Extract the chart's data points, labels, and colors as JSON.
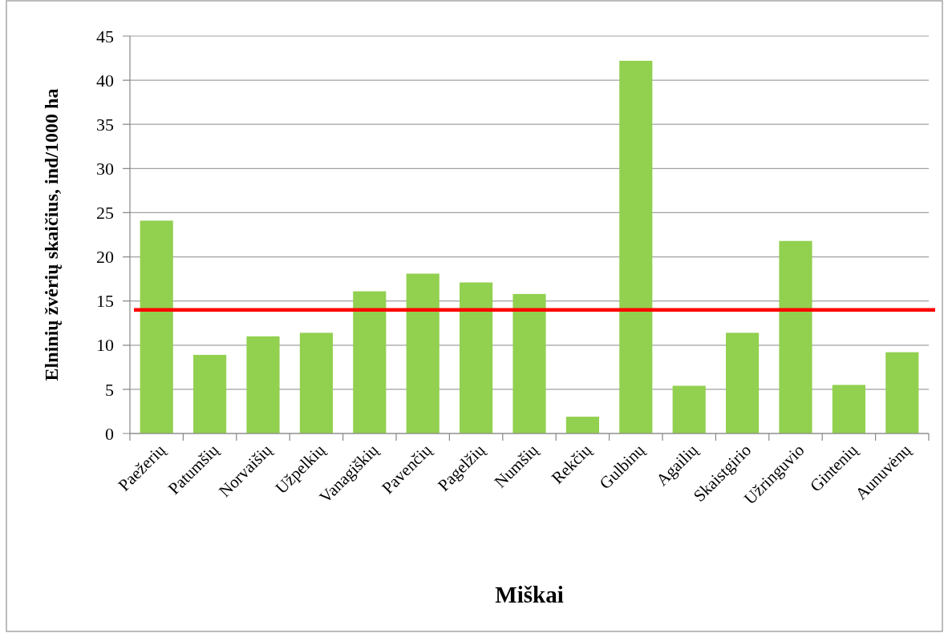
{
  "chart_data": {
    "type": "bar",
    "xlabel": "Miškai",
    "ylabel": "Elninių žvėrių skaičius, ind/1000 ha",
    "categories": [
      "Paežerių",
      "Patumšių",
      "Norvaišių",
      "Užpelkių",
      "Vanagiškių",
      "Pavenčių",
      "Pagelžių",
      "Numšių",
      "Rekčių",
      "Gulbinų",
      "Agailių",
      "Skaistgirio",
      "Užringuvio",
      "Gintenių",
      "Aunuvėnų"
    ],
    "values": [
      24.1,
      8.9,
      11.0,
      11.4,
      16.1,
      18.1,
      17.1,
      15.8,
      1.9,
      42.2,
      5.4,
      11.4,
      21.8,
      5.5,
      9.2
    ],
    "color": "#92d050",
    "ylim": [
      0,
      45
    ],
    "yticks": [
      0,
      5,
      10,
      15,
      20,
      25,
      30,
      35,
      40,
      45
    ],
    "grid": "y",
    "ref_lines": [
      {
        "axis": "y",
        "value": 14,
        "color": "#ff0000"
      }
    ]
  }
}
